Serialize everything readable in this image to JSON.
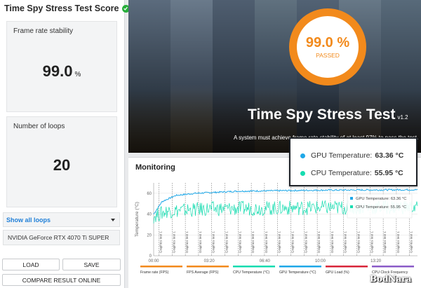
{
  "header": {
    "title": "Time Spy Stress Test Score"
  },
  "cards": {
    "frame_rate_stability": {
      "label": "Frame rate stability",
      "value": "99.0",
      "unit": "%"
    },
    "loops": {
      "label": "Number of loops",
      "value": "20"
    }
  },
  "dropdown": {
    "label": "Show all loops"
  },
  "gpu": {
    "name": "NVIDIA GeForce RTX 4070 Ti SUPER"
  },
  "buttons": {
    "load": "LOAD",
    "save": "SAVE",
    "compare": "COMPARE RESULT ONLINE"
  },
  "hero": {
    "score": "99.0 %",
    "status": "PASSED",
    "title": "Time Spy Stress Test",
    "version": "v1.2",
    "subtitle": "A system must achieve frame rate stability of at least 97% to pass the test."
  },
  "monitoring": {
    "title": "Monitoring",
    "inline_legend": [
      {
        "label": "GPU Temperature:",
        "value": "63.36 °C"
      },
      {
        "label": "CPU Temperature:",
        "value": "55.95 °C"
      }
    ]
  },
  "tooltip": {
    "gpu_label": "GPU Temperature:",
    "gpu_value": "63.36 °C",
    "cpu_label": "CPU Temperature:",
    "cpu_value": "55.95 °C"
  },
  "legend": [
    "Frame rate (FPS)",
    "FPS Average (FPS)",
    "CPU Temperature (°C)",
    "GPU Temperature (°C)",
    "GPU Load (%)",
    "CPU Clock Frequency"
  ],
  "colors": {
    "accent": "#f28a1c",
    "passed": "#27ae3a",
    "link": "#1f7fd8",
    "gpu_temp": "#1fa8e8",
    "cpu_temp": "#16dcb0",
    "legend": [
      "#f28a1c",
      "#f28a1c",
      "#16dcb0",
      "#1fa8e8",
      "#d8263a",
      "#8b5cc8"
    ]
  },
  "watermark": "BodNara",
  "chart_data": {
    "type": "line",
    "ylabel": "Temperature (°C)",
    "ylim": [
      0,
      70
    ],
    "yticks": [
      0,
      20,
      40,
      60
    ],
    "x_ticks": [
      "00:00",
      "03:20",
      "06:40",
      "10:00",
      "13:20"
    ],
    "x_range_seconds": [
      0,
      950
    ],
    "loop_marker_label": "Graphics test 1",
    "loop_marker_count": 20,
    "series": [
      {
        "name": "GPU Temperature",
        "unit": "°C",
        "trend": [
          [
            0,
            40
          ],
          [
            30,
            52
          ],
          [
            80,
            58
          ],
          [
            150,
            60
          ],
          [
            300,
            62
          ],
          [
            600,
            63
          ],
          [
            950,
            63.4
          ]
        ]
      },
      {
        "name": "CPU Temperature",
        "unit": "°C",
        "trend": [
          [
            0,
            38
          ],
          [
            50,
            43
          ],
          [
            200,
            45
          ],
          [
            500,
            46
          ],
          [
            800,
            46.5
          ],
          [
            950,
            47
          ]
        ]
      }
    ]
  }
}
